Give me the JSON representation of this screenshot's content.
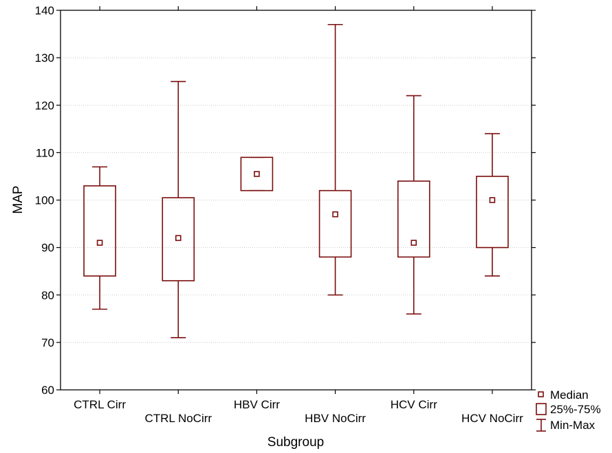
{
  "chart_data": {
    "type": "box",
    "xlabel": "Subgroup",
    "ylabel": "MAP",
    "ylim": [
      60,
      140
    ],
    "yticks": [
      60,
      70,
      80,
      90,
      100,
      110,
      120,
      130,
      140
    ],
    "grid": true,
    "legend_position": "bottom-right",
    "categories": [
      "CTRL Cirr",
      "CTRL NoCirr",
      "HBV Cirr",
      "HBV NoCirr",
      "HCV Cirr",
      "HCV NoCirr"
    ],
    "series": [
      {
        "median": 91,
        "q1": 84,
        "q3": 103,
        "min": 77,
        "max": 107
      },
      {
        "median": 92,
        "q1": 83,
        "q3": 100.5,
        "min": 71,
        "max": 125
      },
      {
        "median": 105.5,
        "q1": 102,
        "q3": 109,
        "min": 102,
        "max": 109
      },
      {
        "median": 97,
        "q1": 88,
        "q3": 102,
        "min": 80,
        "max": 137
      },
      {
        "median": 91,
        "q1": 88,
        "q3": 104,
        "min": 76,
        "max": 122
      },
      {
        "median": 100,
        "q1": 90,
        "q3": 105,
        "min": 84,
        "max": 114
      }
    ],
    "legend": [
      "Median",
      "25%-75%",
      "Min-Max"
    ],
    "color": "#7a0c0c"
  }
}
